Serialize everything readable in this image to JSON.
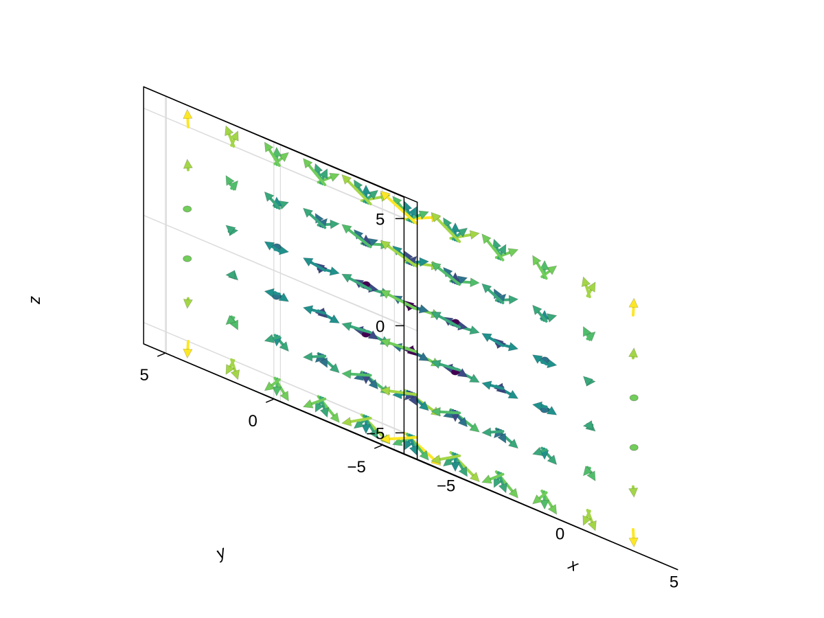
{
  "chart_data": {
    "type": "quiver3d",
    "title": "",
    "xlabel": "x",
    "ylabel": "y",
    "zlabel": "z",
    "xlim": [
      -6,
      6
    ],
    "ylim": [
      -6,
      6
    ],
    "zlim": [
      -6,
      6
    ],
    "grid": true,
    "colormap": "viridis",
    "ticks": {
      "x": [
        {
          "value": -5,
          "label": "−5"
        },
        {
          "value": 0,
          "label": "0"
        },
        {
          "value": 5,
          "label": "5"
        }
      ],
      "y": [
        {
          "value": -5,
          "label": "−5"
        },
        {
          "value": 0,
          "label": "0"
        },
        {
          "value": 5,
          "label": "5"
        }
      ],
      "z": [
        {
          "value": -5,
          "label": "−5"
        },
        {
          "value": 0,
          "label": "0"
        },
        {
          "value": 5,
          "label": "5"
        }
      ]
    },
    "grid_points": [
      -5,
      -3,
      -1,
      1,
      3,
      5
    ],
    "field": "v = (-y, x, z) / ~10, magnitude-coloured"
  }
}
